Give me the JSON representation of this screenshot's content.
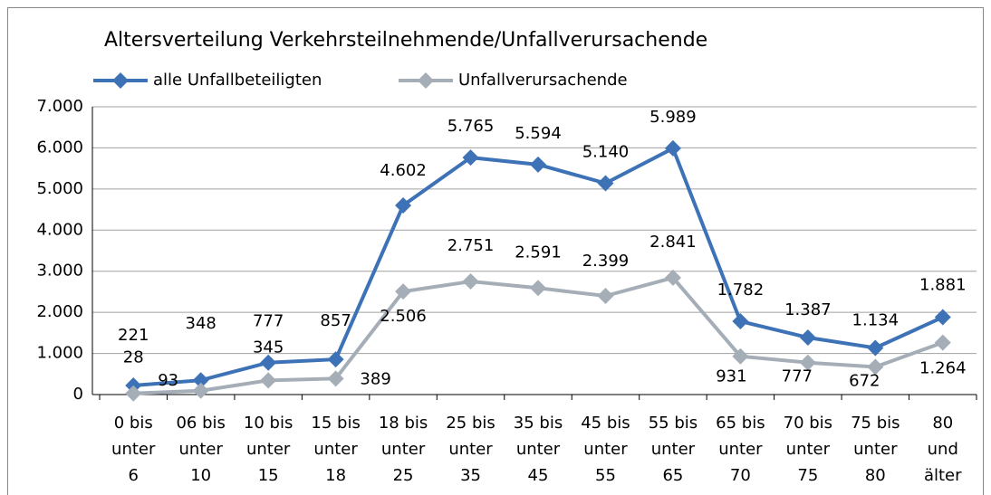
{
  "chart_data": {
    "type": "line",
    "title": "Altersverteilung Verkehrsteilnehmende/Unfallverursachende",
    "categories": [
      [
        "0 bis",
        "unter",
        "6"
      ],
      [
        "06 bis",
        "unter",
        "10"
      ],
      [
        "10 bis",
        "unter",
        "15"
      ],
      [
        "15 bis",
        "unter",
        "18"
      ],
      [
        "18 bis",
        "unter",
        "25"
      ],
      [
        "25 bis",
        "unter",
        "35"
      ],
      [
        "35 bis",
        "unter",
        "45"
      ],
      [
        "45 bis",
        "unter",
        "55"
      ],
      [
        "55 bis",
        "unter",
        "65"
      ],
      [
        "65 bis",
        "unter",
        "70"
      ],
      [
        "70 bis",
        "unter",
        "75"
      ],
      [
        "75 bis",
        "unter",
        "80"
      ],
      [
        "80",
        "und",
        "älter"
      ]
    ],
    "series": [
      {
        "name": "alle Unfallbeteiligten",
        "color": "#3d72b6",
        "values": [
          221,
          348,
          777,
          857,
          4602,
          5765,
          5594,
          5140,
          5989,
          1782,
          1387,
          1134,
          1881
        ],
        "value_labels": [
          "221",
          "348",
          "777",
          "857",
          "4.602",
          "5.765",
          "5.594",
          "5.140",
          "5.989",
          "1.782",
          "1.387",
          "1.134",
          "1.881"
        ]
      },
      {
        "name": "Unfallverursachende",
        "color": "#a5adb7",
        "values": [
          28,
          93,
          345,
          389,
          2506,
          2751,
          2591,
          2399,
          2841,
          931,
          777,
          672,
          1264
        ],
        "value_labels": [
          "28",
          "93",
          "345",
          "389",
          "2.506",
          "2.751",
          "2.591",
          "2.399",
          "2.841",
          "931",
          "777",
          "672",
          "1.264"
        ]
      }
    ],
    "ylim": [
      0,
      7000
    ],
    "yticks": [
      0,
      {
        "value": 1000,
        "label": "1.000"
      },
      {
        "value": 2000,
        "label": "2.000"
      },
      {
        "value": 3000,
        "label": "3.000"
      },
      {
        "value": 4000,
        "label": "4.000"
      },
      {
        "value": 5000,
        "label": "5.000"
      },
      {
        "value": 6000,
        "label": "6.000"
      },
      {
        "value": 7000,
        "label": "7.000"
      }
    ],
    "grid": true
  }
}
